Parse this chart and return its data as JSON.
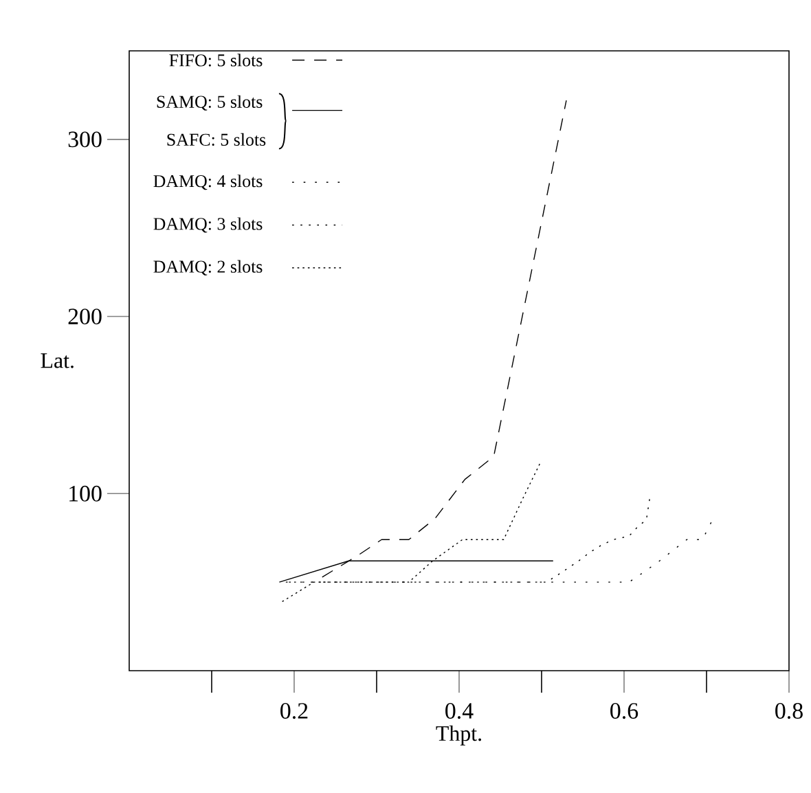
{
  "chart_data": {
    "type": "line",
    "xlabel": "Thpt.",
    "ylabel": "Lat.",
    "xlim": [
      0,
      0.8
    ],
    "ylim": [
      0,
      350
    ],
    "xticks": [
      {
        "value": 0.1,
        "label": null
      },
      0.2,
      {
        "value": 0.3,
        "label": null
      },
      0.4,
      {
        "value": 0.5,
        "label": null
      },
      0.6,
      {
        "value": 0.7,
        "label": null
      },
      0.8
    ],
    "yticks": [
      100,
      200,
      300
    ],
    "legend": "top left",
    "marker": "none",
    "annotations": [
      "SAFC: 5 slots"
    ],
    "series": [
      {
        "name": "FIFO: 5 slots",
        "color": "#000000",
        "line_style": "dashed",
        "x": [
          0.224,
          0.277,
          0.306,
          0.339,
          0.371,
          0.407,
          0.442,
          0.53
        ],
        "values": [
          50,
          65,
          74,
          74,
          86,
          108,
          121,
          322
        ]
      },
      {
        "name": "SAMQ: 5 slots",
        "color": "#000000",
        "line_style": "solid",
        "x": [
          0.182,
          0.266,
          0.514
        ],
        "values": [
          50,
          62,
          62
        ]
      },
      {
        "name": "DAMQ: 4 slots",
        "color": "#000000",
        "line_style": "dotted",
        "x": [
          0.182,
          0.606,
          0.625,
          0.643,
          0.676,
          0.695,
          0.707
        ],
        "values": [
          50,
          50,
          56,
          62,
          74,
          74,
          85
        ]
      },
      {
        "name": "DAMQ: 3 slots",
        "color": "#000000",
        "line_style": "dotted",
        "x": [
          0.182,
          0.506,
          0.526,
          0.545,
          0.559,
          0.573,
          0.587,
          0.606,
          0.618,
          0.627,
          0.631
        ],
        "values": [
          50,
          50,
          56,
          62,
          67,
          71,
          74,
          76,
          82,
          85,
          97
        ]
      },
      {
        "name": "DAMQ: 2 slots",
        "color": "#000000",
        "line_style": "dotted",
        "x": [
          0.182,
          0.224,
          0.339,
          0.368,
          0.404,
          0.454,
          0.477,
          0.498
        ],
        "values": [
          38,
          50,
          50,
          62,
          74,
          74,
          97,
          117
        ]
      }
    ]
  }
}
